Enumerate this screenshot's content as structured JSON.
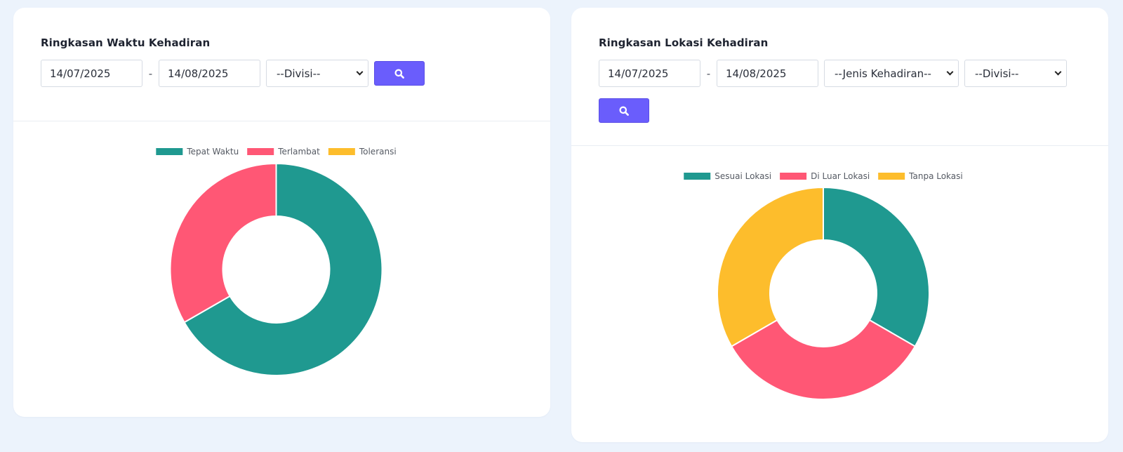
{
  "time_card": {
    "title": "Ringkasan Waktu Kehadiran",
    "date_from": "14/07/2025",
    "date_separator": "-",
    "date_to": "14/08/2025",
    "division_select": "--Divisi--",
    "search_icon": "search-icon"
  },
  "location_card": {
    "title": "Ringkasan Lokasi Kehadiran",
    "date_from": "14/07/2025",
    "date_separator": "-",
    "date_to": "14/08/2025",
    "attendance_type_select": "--Jenis Kehadiran--",
    "division_select": "--Divisi--",
    "search_icon": "search-icon"
  },
  "chart_data": [
    {
      "type": "pie",
      "variant": "doughnut",
      "categories": [
        "Tepat Waktu",
        "Terlambat",
        "Toleransi"
      ],
      "values": [
        66.7,
        33.3,
        0
      ],
      "colors": [
        "#1f9990",
        "#ff5775",
        "#fdbd2c"
      ],
      "legend_placement": "top"
    },
    {
      "type": "pie",
      "variant": "doughnut",
      "categories": [
        "Sesuai Lokasi",
        "Di Luar Lokasi",
        "Tanpa Lokasi"
      ],
      "values": [
        33.3,
        33.3,
        33.3
      ],
      "colors": [
        "#1f9990",
        "#ff5775",
        "#fdbd2c"
      ],
      "legend_placement": "top"
    }
  ]
}
